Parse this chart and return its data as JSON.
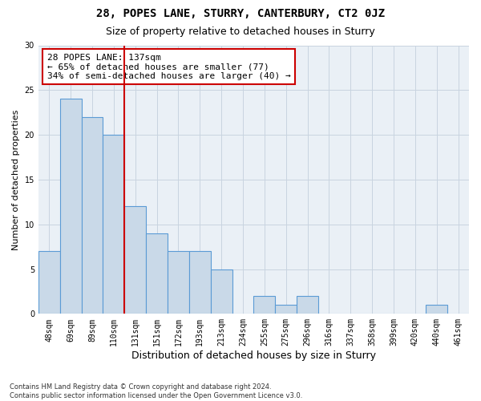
{
  "title": "28, POPES LANE, STURRY, CANTERBURY, CT2 0JZ",
  "subtitle": "Size of property relative to detached houses in Sturry",
  "xlabel": "Distribution of detached houses by size in Sturry",
  "ylabel": "Number of detached properties",
  "categories": [
    "48sqm",
    "69sqm",
    "89sqm",
    "110sqm",
    "131sqm",
    "151sqm",
    "172sqm",
    "193sqm",
    "213sqm",
    "234sqm",
    "255sqm",
    "275sqm",
    "296sqm",
    "316sqm",
    "337sqm",
    "358sqm",
    "399sqm",
    "420sqm",
    "440sqm",
    "461sqm"
  ],
  "values": [
    7,
    24,
    22,
    20,
    12,
    9,
    7,
    7,
    5,
    0,
    2,
    1,
    2,
    0,
    0,
    0,
    0,
    0,
    1,
    0
  ],
  "bar_color": "#c9d9e8",
  "bar_edge_color": "#5b9bd5",
  "vline_color": "#cc0000",
  "annotation_text": "28 POPES LANE: 137sqm\n← 65% of detached houses are smaller (77)\n34% of semi-detached houses are larger (40) →",
  "annotation_box_color": "#cc0000",
  "ylim": [
    0,
    30
  ],
  "yticks": [
    0,
    5,
    10,
    15,
    20,
    25,
    30
  ],
  "grid_color": "#c8d4e0",
  "bg_color": "#eaf0f6",
  "footer": "Contains HM Land Registry data © Crown copyright and database right 2024.\nContains public sector information licensed under the Open Government Licence v3.0.",
  "title_fontsize": 10,
  "subtitle_fontsize": 9,
  "tick_fontsize": 7,
  "ylabel_fontsize": 8,
  "xlabel_fontsize": 9,
  "annotation_fontsize": 8,
  "footer_fontsize": 6
}
